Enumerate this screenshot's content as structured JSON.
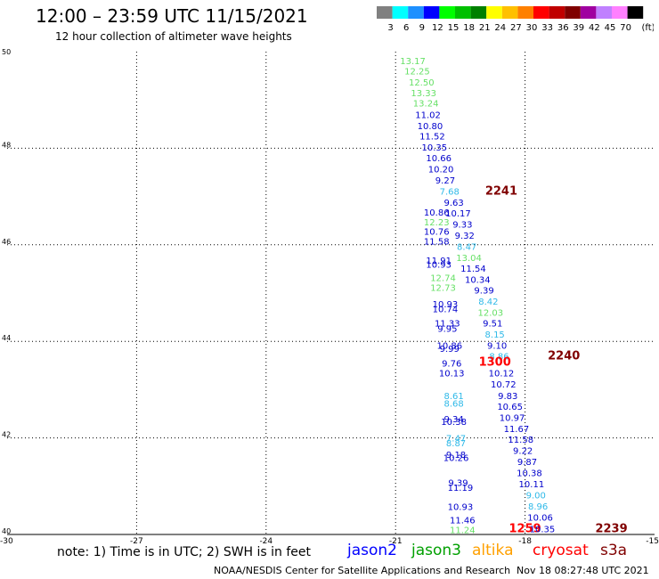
{
  "header": {
    "title": "12:00 – 23:59 UTC 11/15/2021",
    "subtitle": "12 hour collection of altimeter wave heights"
  },
  "colorbar": {
    "unit": "(ft)",
    "steps": [
      {
        "label": "3",
        "color": "#808080"
      },
      {
        "label": "6",
        "color": "#00ffff"
      },
      {
        "label": "9",
        "color": "#1e90ff"
      },
      {
        "label": "12",
        "color": "#0000ff"
      },
      {
        "label": "15",
        "color": "#00ff00"
      },
      {
        "label": "18",
        "color": "#00c000"
      },
      {
        "label": "21",
        "color": "#008000"
      },
      {
        "label": "24",
        "color": "#ffff00"
      },
      {
        "label": "27",
        "color": "#ffc000"
      },
      {
        "label": "30",
        "color": "#ff8000"
      },
      {
        "label": "33",
        "color": "#ff0000"
      },
      {
        "label": "36",
        "color": "#c00000"
      },
      {
        "label": "39",
        "color": "#800000"
      },
      {
        "label": "42",
        "color": "#a000a0"
      },
      {
        "label": "45",
        "color": "#c080ff"
      },
      {
        "label": "70",
        "color": "#ff80ff"
      },
      {
        "label": "",
        "color": "#000000"
      }
    ]
  },
  "footer": {
    "note": "note: 1) Time is in UTC; 2) SWH is in feet",
    "satellites": [
      {
        "name": "jason2",
        "color": "#0000ff"
      },
      {
        "name": "jason3",
        "color": "#00a000"
      },
      {
        "name": "altika",
        "color": "#ffa000"
      },
      {
        "name": "cryosat",
        "color": "#ff0000"
      },
      {
        "name": "s3a",
        "color": "#800000"
      }
    ],
    "credit": "NOAA/NESDIS Center for Satellite Applications and Research",
    "issued": "Nov 18 08:27:48 UTC 2021"
  },
  "chart_data": {
    "type": "scatter",
    "title": "",
    "xlabel": "",
    "ylabel": "",
    "xlim": [
      -30,
      -15
    ],
    "ylim": [
      40,
      50
    ],
    "xticks": [
      "-30",
      "-27",
      "-24",
      "-21",
      "-18",
      "-15"
    ],
    "yticks": [
      "40",
      "42",
      "44",
      "46",
      "48",
      "50"
    ],
    "grid": true,
    "colors": {
      "c6": "#0099cc",
      "c9": "#2fb9e8",
      "c12": "#0000cc",
      "c15": "#66e066",
      "c18": "#33cc66",
      "c21": "#008000",
      "red": "#ff0000",
      "dred": "#800000",
      "grid": "#000000"
    },
    "points": [
      {
        "x": -20.6,
        "y": 49.82,
        "label": "13.17",
        "c": "c15"
      },
      {
        "x": -20.5,
        "y": 49.6,
        "label": "12.25",
        "c": "c15"
      },
      {
        "x": -20.4,
        "y": 49.37,
        "label": "12.50",
        "c": "c15"
      },
      {
        "x": -20.35,
        "y": 49.15,
        "label": "13.33",
        "c": "c15"
      },
      {
        "x": -20.3,
        "y": 48.94,
        "label": "13.24",
        "c": "c15"
      },
      {
        "x": -20.25,
        "y": 48.7,
        "label": "11.02",
        "c": "c12"
      },
      {
        "x": -20.2,
        "y": 48.47,
        "label": "10.80",
        "c": "c12"
      },
      {
        "x": -20.15,
        "y": 48.26,
        "label": "11.52",
        "c": "c12"
      },
      {
        "x": -20.1,
        "y": 48.03,
        "label": "10.35",
        "c": "c12"
      },
      {
        "x": -20.0,
        "y": 47.8,
        "label": "10.66",
        "c": "c12"
      },
      {
        "x": -19.95,
        "y": 47.57,
        "label": "10.20",
        "c": "c12"
      },
      {
        "x": -19.85,
        "y": 47.34,
        "label": "9.27",
        "c": "c12"
      },
      {
        "x": -19.75,
        "y": 47.11,
        "label": "7.68",
        "c": "c9"
      },
      {
        "x": -18.55,
        "y": 47.11,
        "label": "2241",
        "c": "dred",
        "big": true
      },
      {
        "x": -19.65,
        "y": 46.88,
        "label": "9.63",
        "c": "c12"
      },
      {
        "x": -20.05,
        "y": 46.68,
        "label": "10.86",
        "c": "c12"
      },
      {
        "x": -19.55,
        "y": 46.66,
        "label": "10.17",
        "c": "c12"
      },
      {
        "x": -20.05,
        "y": 46.48,
        "label": "12.23",
        "c": "c15"
      },
      {
        "x": -19.45,
        "y": 46.43,
        "label": "9.33",
        "c": "c12"
      },
      {
        "x": -20.05,
        "y": 46.28,
        "label": "10.76",
        "c": "c12"
      },
      {
        "x": -19.4,
        "y": 46.2,
        "label": "9.32",
        "c": "c12"
      },
      {
        "x": -20.05,
        "y": 46.08,
        "label": "11.58",
        "c": "c12"
      },
      {
        "x": -19.35,
        "y": 45.97,
        "label": "8.47",
        "c": "c9"
      },
      {
        "x": -20.0,
        "y": 45.68,
        "label": "11.91",
        "c": "c12"
      },
      {
        "x": -20.0,
        "y": 45.6,
        "label": "10.93",
        "c": "c12"
      },
      {
        "x": -19.3,
        "y": 45.74,
        "label": "13.04",
        "c": "c15"
      },
      {
        "x": -19.2,
        "y": 45.52,
        "label": "11.54",
        "c": "c12"
      },
      {
        "x": -19.9,
        "y": 45.32,
        "label": "12.74",
        "c": "c15"
      },
      {
        "x": -19.1,
        "y": 45.29,
        "label": "10.34",
        "c": "c12"
      },
      {
        "x": -19.9,
        "y": 45.12,
        "label": "12.73",
        "c": "c15"
      },
      {
        "x": -18.95,
        "y": 45.06,
        "label": "9.39",
        "c": "c12"
      },
      {
        "x": -19.85,
        "y": 44.78,
        "label": "10.93",
        "c": "c12"
      },
      {
        "x": -18.85,
        "y": 44.83,
        "label": "8.42",
        "c": "c9"
      },
      {
        "x": -19.85,
        "y": 44.68,
        "label": "10.74",
        "c": "c12"
      },
      {
        "x": -18.8,
        "y": 44.6,
        "label": "12.03",
        "c": "c15"
      },
      {
        "x": -19.8,
        "y": 44.38,
        "label": "11.33",
        "c": "c12"
      },
      {
        "x": -18.75,
        "y": 44.38,
        "label": "9.51",
        "c": "c12"
      },
      {
        "x": -19.8,
        "y": 44.27,
        "label": "9.95",
        "c": "c12"
      },
      {
        "x": -18.7,
        "y": 44.15,
        "label": "8.15",
        "c": "c9"
      },
      {
        "x": -19.75,
        "y": 43.92,
        "label": "10.86",
        "c": "c12"
      },
      {
        "x": -19.75,
        "y": 43.86,
        "label": "9.99",
        "c": "c12"
      },
      {
        "x": -18.65,
        "y": 43.92,
        "label": "9.10",
        "c": "c12"
      },
      {
        "x": -18.6,
        "y": 43.7,
        "label": "8.86",
        "c": "c9"
      },
      {
        "x": -17.1,
        "y": 43.7,
        "label": "2240",
        "c": "dred",
        "big": true
      },
      {
        "x": -19.7,
        "y": 43.55,
        "label": "9.76",
        "c": "c12"
      },
      {
        "x": -18.7,
        "y": 43.57,
        "label": "1300",
        "c": "red",
        "big": true
      },
      {
        "x": -19.7,
        "y": 43.35,
        "label": "10.13",
        "c": "c12"
      },
      {
        "x": -18.55,
        "y": 43.35,
        "label": "10.12",
        "c": "c12"
      },
      {
        "x": -18.5,
        "y": 43.12,
        "label": "10.72",
        "c": "c12"
      },
      {
        "x": -19.65,
        "y": 42.88,
        "label": "8.61",
        "c": "c9"
      },
      {
        "x": -18.4,
        "y": 42.88,
        "label": "9.83",
        "c": "c12"
      },
      {
        "x": -19.65,
        "y": 42.72,
        "label": "8.68",
        "c": "c9"
      },
      {
        "x": -18.35,
        "y": 42.66,
        "label": "10.65",
        "c": "c12"
      },
      {
        "x": -19.65,
        "y": 42.4,
        "label": "9.34",
        "c": "c12"
      },
      {
        "x": -18.3,
        "y": 42.43,
        "label": "10.97",
        "c": "c12"
      },
      {
        "x": -19.65,
        "y": 42.34,
        "label": "10.38",
        "c": "c12"
      },
      {
        "x": -18.2,
        "y": 42.2,
        "label": "11.67",
        "c": "c12"
      },
      {
        "x": -19.6,
        "y": 42.0,
        "label": "7.47",
        "c": "c9"
      },
      {
        "x": -19.6,
        "y": 41.9,
        "label": "8.87",
        "c": "c9"
      },
      {
        "x": -18.1,
        "y": 41.97,
        "label": "11.58",
        "c": "c12"
      },
      {
        "x": -18.05,
        "y": 41.74,
        "label": "9.22",
        "c": "c12"
      },
      {
        "x": -19.6,
        "y": 41.66,
        "label": "9.18",
        "c": "c12"
      },
      {
        "x": -19.6,
        "y": 41.6,
        "label": "10.26",
        "c": "c12"
      },
      {
        "x": -17.95,
        "y": 41.51,
        "label": "9.87",
        "c": "c12"
      },
      {
        "x": -17.9,
        "y": 41.28,
        "label": "10.38",
        "c": "c12"
      },
      {
        "x": -19.55,
        "y": 41.08,
        "label": "9.39",
        "c": "c12"
      },
      {
        "x": -17.85,
        "y": 41.05,
        "label": "10.11",
        "c": "c12"
      },
      {
        "x": -19.5,
        "y": 40.98,
        "label": "11.19",
        "c": "c12"
      },
      {
        "x": -17.75,
        "y": 40.82,
        "label": "9.00",
        "c": "c9"
      },
      {
        "x": -17.7,
        "y": 40.59,
        "label": "8.96",
        "c": "c9"
      },
      {
        "x": -19.5,
        "y": 40.58,
        "label": "10.93",
        "c": "c12"
      },
      {
        "x": -17.65,
        "y": 40.36,
        "label": "10.06",
        "c": "c12"
      },
      {
        "x": -19.45,
        "y": 40.3,
        "label": "11.46",
        "c": "c12"
      },
      {
        "x": -19.45,
        "y": 40.1,
        "label": "11.24",
        "c": "c15"
      },
      {
        "x": -18.0,
        "y": 40.12,
        "label": "1259",
        "c": "red",
        "big": true
      },
      {
        "x": -17.6,
        "y": 40.12,
        "label": "10.35",
        "c": "c12"
      },
      {
        "x": -16.0,
        "y": 40.12,
        "label": "2239",
        "c": "dred",
        "big": true
      }
    ]
  }
}
